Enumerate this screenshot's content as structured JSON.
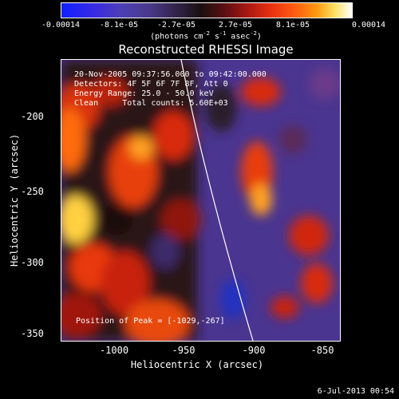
{
  "colorbar": {
    "ticks": [
      "-0.00014",
      "-8.1e-05",
      "-2.7e-05",
      "2.7e-05",
      "8.1e-05",
      "0.00014"
    ],
    "units_main": "(photons cm",
    "units_sup1": "-2",
    "units_mid": " s",
    "units_sup2": "-1",
    "units_mid2": " asec",
    "units_sup3": "-2",
    "units_end": ")"
  },
  "title": "Reconstructed RHESSI Image",
  "info": {
    "line1": "20-Nov-2005 09:37:56.000 to 09:42:00.000",
    "line2": "Detectors: 4F 5F 6F 7F 8F, Att 0",
    "line3": "Energy Range: 25.0 - 50.0 keV",
    "line4": "Clean     Total counts: 5.60E+03"
  },
  "peak": "Position of Peak = [-1029,-267]",
  "axes": {
    "xlabel": "Heliocentric X (arcsec)",
    "ylabel": "Heliocentric Y (arcsec)",
    "xticks": [
      "-1000",
      "-950",
      "-900",
      "-850"
    ],
    "yticks": [
      "-200",
      "-250",
      "-300",
      "-350"
    ],
    "xlim": [
      -1038,
      -834
    ],
    "ylim": [
      -352,
      -172
    ]
  },
  "date": "6-Jul-2013 00:54"
}
